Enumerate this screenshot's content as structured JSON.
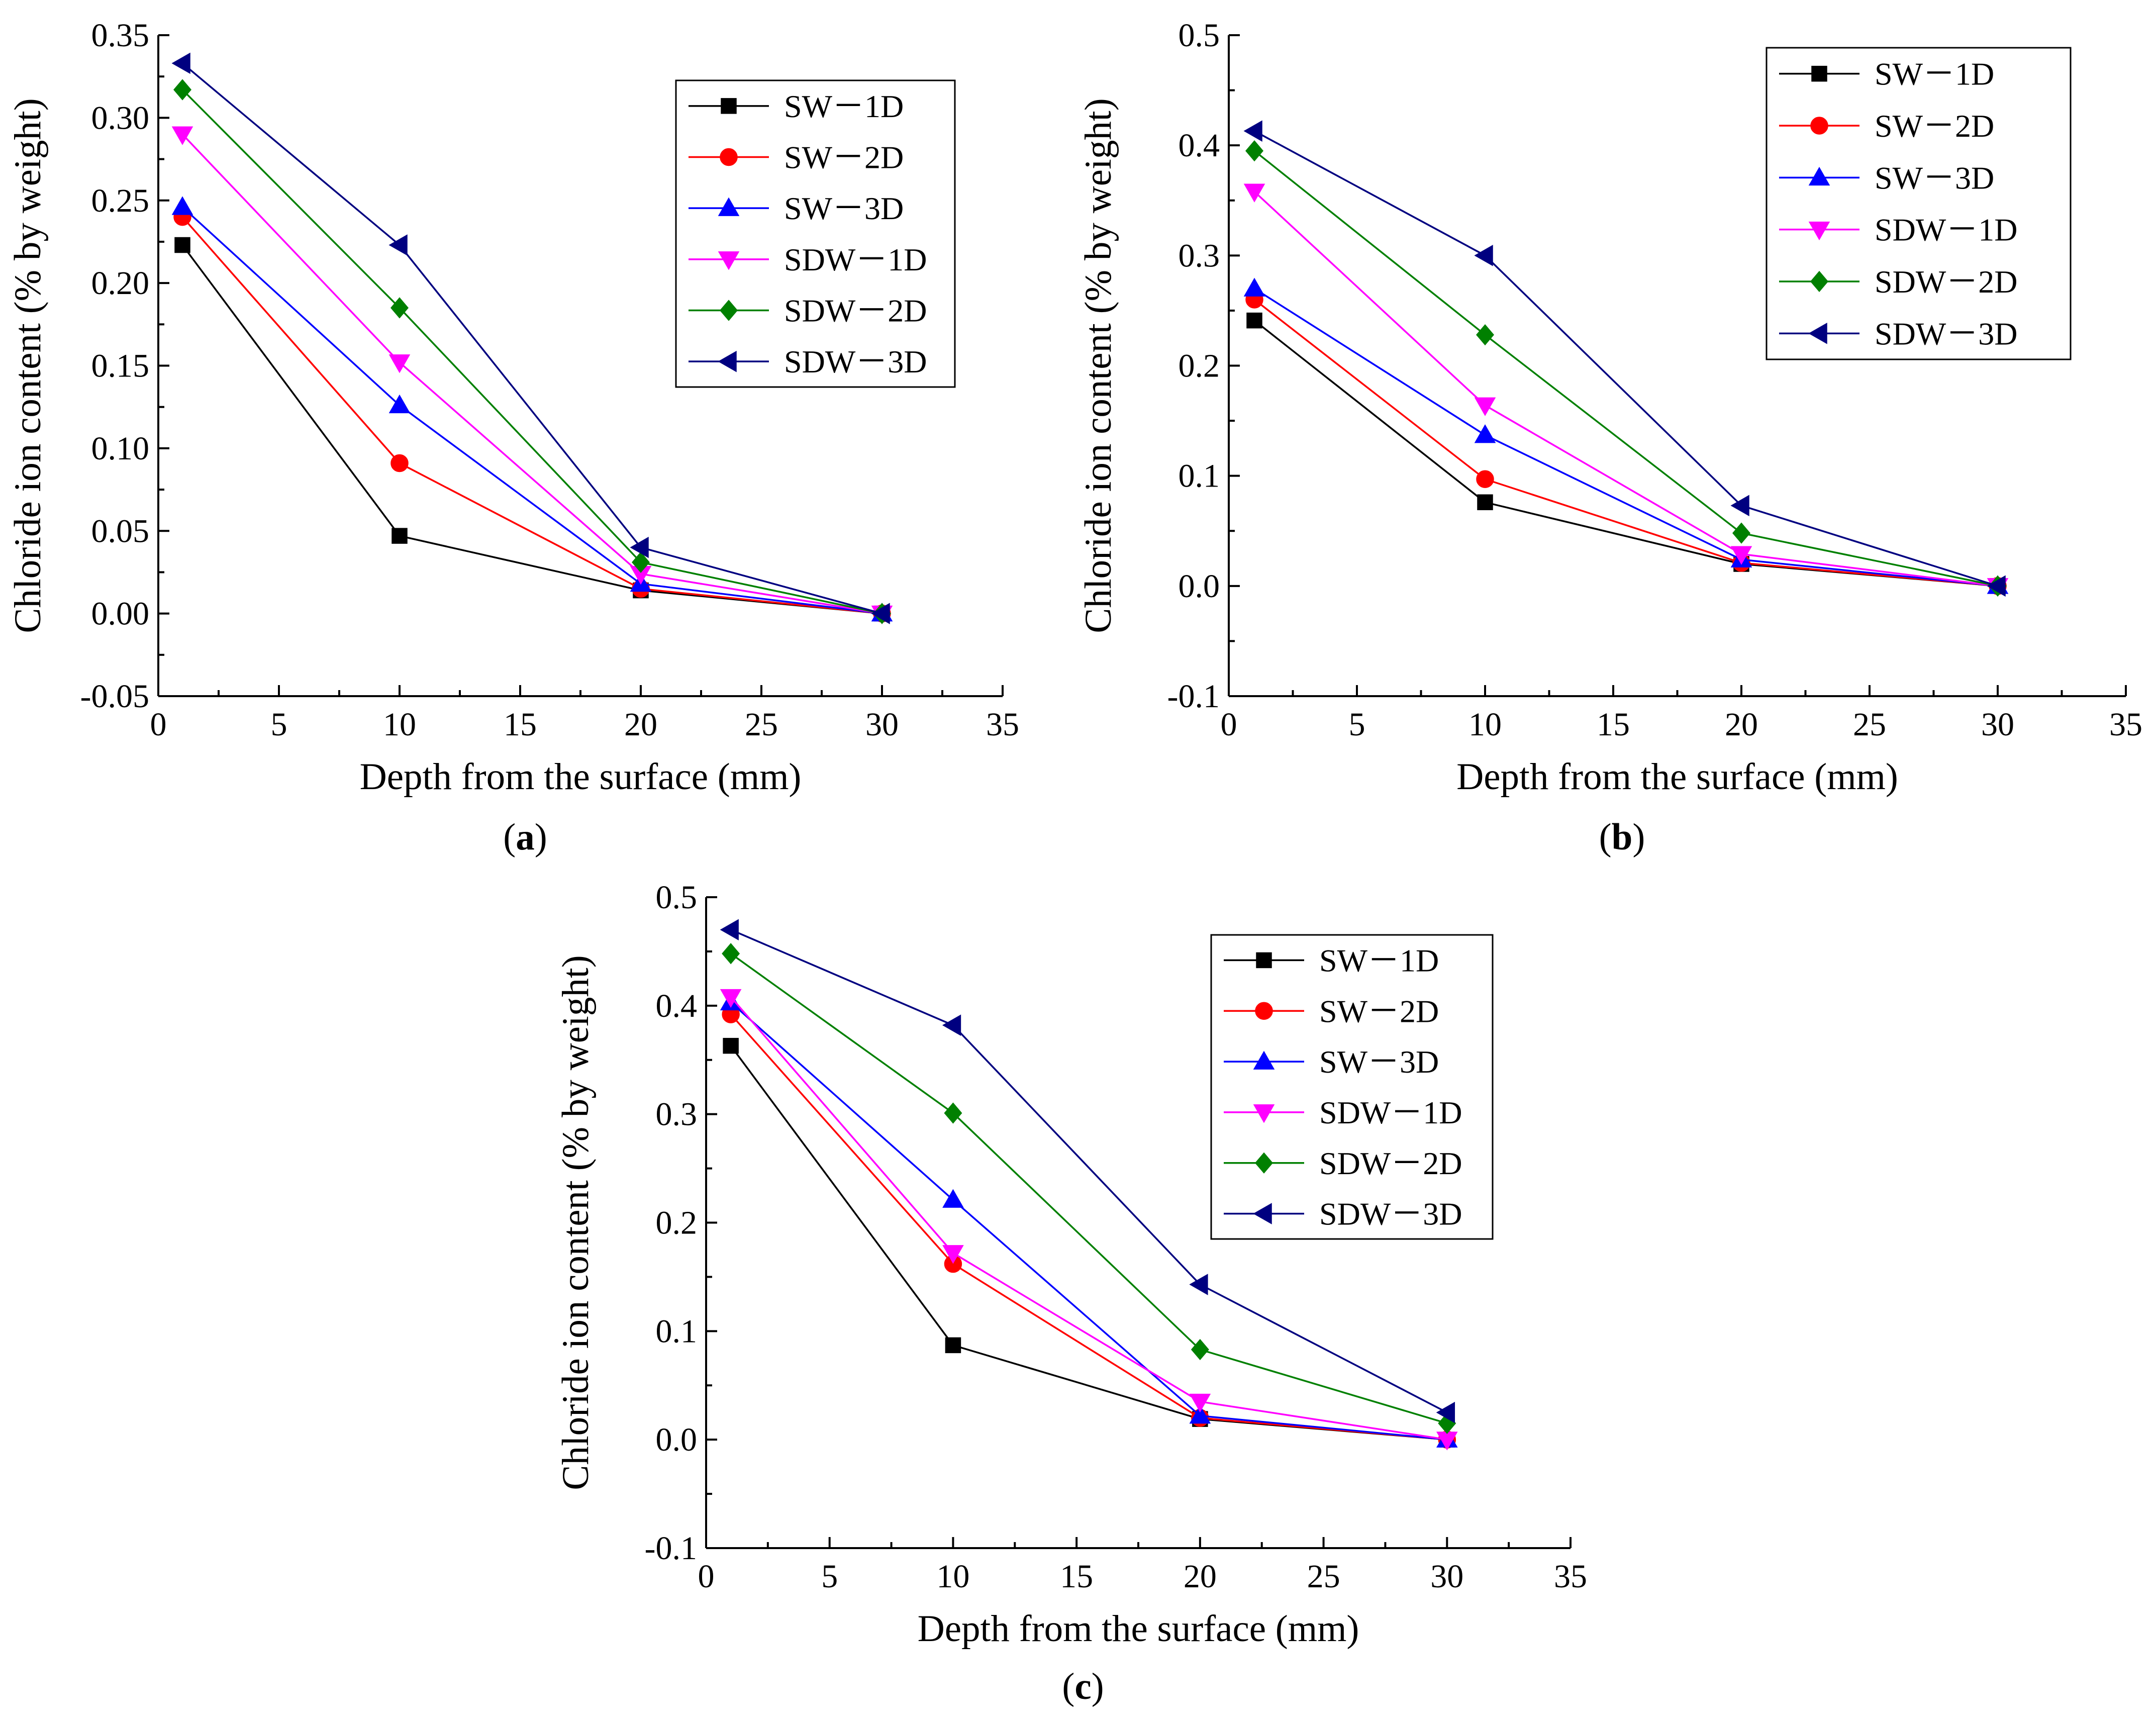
{
  "figure": {
    "series_styles": [
      {
        "color": "#000000",
        "marker": "square"
      },
      {
        "color": "#ff0000",
        "marker": "circle"
      },
      {
        "color": "#0000ff",
        "marker": "triangle-up"
      },
      {
        "color": "#ff00ff",
        "marker": "triangle-down"
      },
      {
        "color": "#008000",
        "marker": "diamond"
      },
      {
        "color": "#000080",
        "marker": "triangle-left"
      }
    ]
  },
  "chart_data": [
    {
      "id": "a",
      "type": "line",
      "caption": {
        "open": "(",
        "letter": "a",
        "close": ")"
      },
      "xlabel": "Depth from the surface (mm)",
      "ylabel": "Chloride ion content (% by weight)",
      "xlim": [
        0,
        35
      ],
      "ylim": [
        -0.05,
        0.35
      ],
      "xticks": [
        0,
        5,
        10,
        15,
        20,
        25,
        30,
        35
      ],
      "yticks": [
        -0.05,
        0.0,
        0.05,
        0.1,
        0.15,
        0.2,
        0.25,
        0.3,
        0.35
      ],
      "ytick_labels": [
        "-0.05",
        "0.00",
        "0.05",
        "0.10",
        "0.15",
        "0.20",
        "0.25",
        "0.30",
        "0.35"
      ],
      "legend_position": "top-right",
      "x": [
        1,
        10,
        20,
        30
      ],
      "series": [
        {
          "name": "SW－1D",
          "values": [
            0.223,
            0.047,
            0.014,
            0.0
          ]
        },
        {
          "name": "SW－2D",
          "values": [
            0.24,
            0.091,
            0.015,
            0.0
          ]
        },
        {
          "name": "SW－3D",
          "values": [
            0.246,
            0.126,
            0.018,
            0.0
          ]
        },
        {
          "name": "SDW－1D",
          "values": [
            0.29,
            0.152,
            0.024,
            0.0
          ]
        },
        {
          "name": "SDW－2D",
          "values": [
            0.317,
            0.185,
            0.031,
            0.0
          ]
        },
        {
          "name": "SDW－3D",
          "values": [
            0.333,
            0.223,
            0.04,
            0.0
          ]
        }
      ]
    },
    {
      "id": "b",
      "type": "line",
      "caption": {
        "open": "(",
        "letter": "b",
        "close": ")"
      },
      "xlabel": "Depth from the surface (mm)",
      "ylabel": "Chloride ion content (% by weight)",
      "xlim": [
        0,
        35
      ],
      "ylim": [
        -0.1,
        0.5
      ],
      "xticks": [
        0,
        5,
        10,
        15,
        20,
        25,
        30,
        35
      ],
      "yticks": [
        -0.1,
        0.0,
        0.1,
        0.2,
        0.3,
        0.4,
        0.5
      ],
      "ytick_labels": [
        "-0.1",
        "0.0",
        "0.1",
        "0.2",
        "0.3",
        "0.4",
        "0.5"
      ],
      "legend_position": "top-right",
      "x": [
        1,
        10,
        20,
        30
      ],
      "series": [
        {
          "name": "SW－1D",
          "values": [
            0.241,
            0.076,
            0.02,
            0.0
          ]
        },
        {
          "name": "SW－2D",
          "values": [
            0.26,
            0.097,
            0.021,
            0.0
          ]
        },
        {
          "name": "SW－3D",
          "values": [
            0.27,
            0.137,
            0.024,
            0.0
          ]
        },
        {
          "name": "SDW－1D",
          "values": [
            0.358,
            0.164,
            0.029,
            0.0
          ]
        },
        {
          "name": "SDW－2D",
          "values": [
            0.395,
            0.228,
            0.048,
            0.0
          ]
        },
        {
          "name": "SDW－3D",
          "values": [
            0.413,
            0.3,
            0.073,
            0.0
          ]
        }
      ]
    },
    {
      "id": "c",
      "type": "line",
      "caption": {
        "open": "(",
        "letter": "c",
        "close": ")"
      },
      "xlabel": "Depth from the surface (mm)",
      "ylabel": "Chloride ion content (% by weight)",
      "xlim": [
        0,
        35
      ],
      "ylim": [
        -0.1,
        0.5
      ],
      "xticks": [
        0,
        5,
        10,
        15,
        20,
        25,
        30,
        35
      ],
      "yticks": [
        -0.1,
        0.0,
        0.1,
        0.2,
        0.3,
        0.4,
        0.5
      ],
      "ytick_labels": [
        "-0.1",
        "0.0",
        "0.1",
        "0.2",
        "0.3",
        "0.4",
        "0.5"
      ],
      "legend_position": "top-right",
      "x": [
        1,
        10,
        20,
        30
      ],
      "series": [
        {
          "name": "SW－1D",
          "values": [
            0.363,
            0.087,
            0.019,
            0.0
          ]
        },
        {
          "name": "SW－2D",
          "values": [
            0.392,
            0.162,
            0.02,
            0.0
          ]
        },
        {
          "name": "SW－3D",
          "values": [
            0.403,
            0.221,
            0.022,
            0.0
          ]
        },
        {
          "name": "SDW－1D",
          "values": [
            0.408,
            0.172,
            0.035,
            0.0
          ]
        },
        {
          "name": "SDW－2D",
          "values": [
            0.448,
            0.301,
            0.083,
            0.015
          ]
        },
        {
          "name": "SDW－3D",
          "values": [
            0.47,
            0.382,
            0.143,
            0.025
          ]
        }
      ]
    }
  ]
}
